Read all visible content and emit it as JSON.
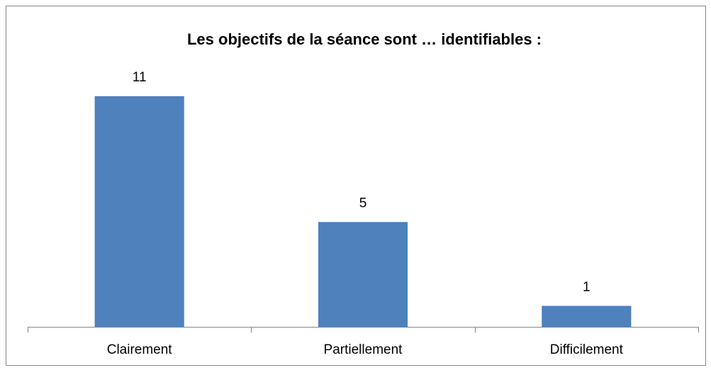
{
  "chart_data": {
    "type": "bar",
    "title": "Les objectifs de la séance sont … identifiables :",
    "categories": [
      "Clairement",
      "Partiellement",
      "Difficilement"
    ],
    "values": [
      11,
      5,
      1
    ],
    "color": "#4f81bd"
  }
}
